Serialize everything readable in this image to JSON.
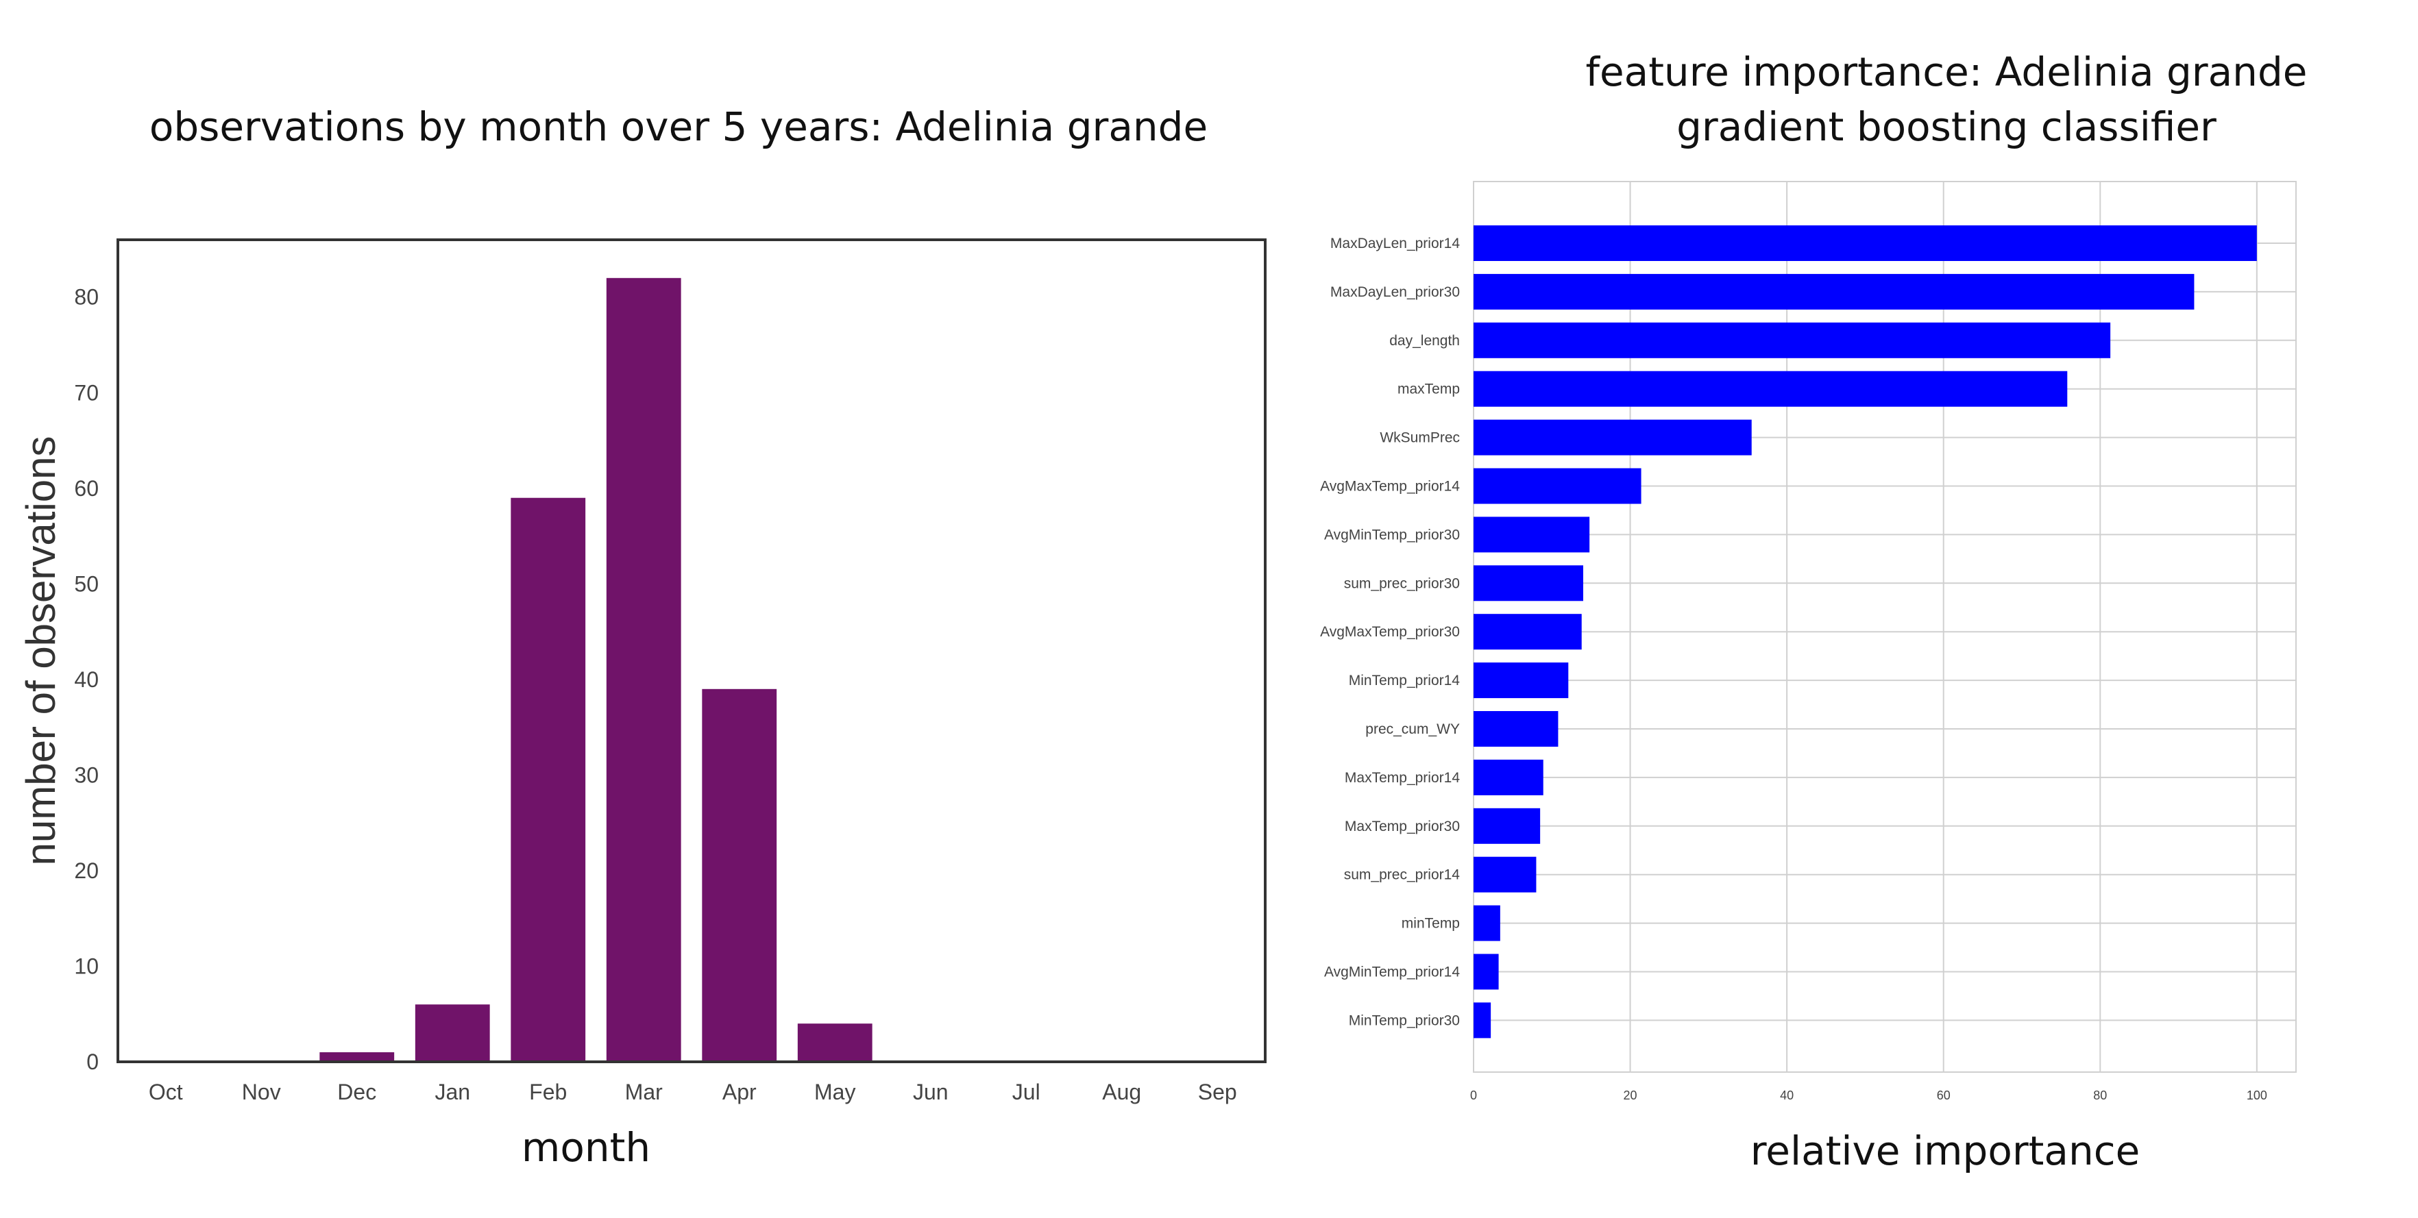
{
  "chart_data": [
    {
      "type": "bar",
      "title": "observations by month over 5 years: Adelinia grande",
      "xlabel": "month",
      "ylabel": "number of observations",
      "categories": [
        "Oct",
        "Nov",
        "Dec",
        "Jan",
        "Feb",
        "Mar",
        "Apr",
        "May",
        "Jun",
        "Jul",
        "Aug",
        "Sep"
      ],
      "values": [
        0,
        0,
        1,
        6,
        59,
        82,
        39,
        4,
        0,
        0,
        0,
        0
      ],
      "ylim": [
        0,
        86
      ],
      "yticks": [
        0,
        10,
        20,
        30,
        40,
        50,
        60,
        70,
        80
      ],
      "color": "#701369",
      "grid": false
    },
    {
      "type": "bar",
      "orientation": "horizontal",
      "title": "feature importance: Adelinia grande",
      "subtitle": "gradient boosting classifier",
      "xlabel": "relative importance",
      "ylabel": "",
      "categories": [
        "MaxDayLen_prior14",
        "MaxDayLen_prior30",
        "day_length",
        "maxTemp",
        "WkSumPrec",
        "AvgMaxTemp_prior14",
        "AvgMinTemp_prior30",
        "sum_prec_prior30",
        "AvgMaxTemp_prior30",
        "MinTemp_prior14",
        "prec_cum_WY",
        "MaxTemp_prior14",
        "MaxTemp_prior30",
        "sum_prec_prior14",
        "minTemp",
        "AvgMinTemp_prior14",
        "MinTemp_prior30"
      ],
      "values": [
        100,
        92,
        81.3,
        75.8,
        35.5,
        21.4,
        14.8,
        14.0,
        13.8,
        12.1,
        10.8,
        8.9,
        8.5,
        8.0,
        3.4,
        3.2,
        2.2
      ],
      "xlim": [
        0,
        105
      ],
      "xticks": [
        0,
        20,
        40,
        60,
        80,
        100
      ],
      "color": "#0000ff",
      "grid": true
    }
  ]
}
